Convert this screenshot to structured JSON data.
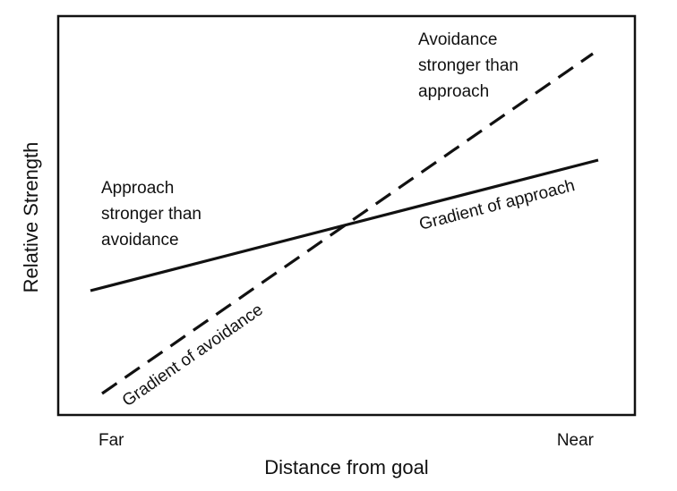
{
  "axes": {
    "xlabel": "Distance from goal",
    "ylabel": "Relative Strength",
    "x_ticks": [
      "Far",
      "Near"
    ]
  },
  "lines": {
    "approach": {
      "label": "Gradient of approach",
      "style": "solid"
    },
    "avoidance": {
      "label": "Gradient of avoidance",
      "style": "dashed"
    }
  },
  "annotations": {
    "left_region": [
      "Approach",
      "stronger than",
      "avoidance"
    ],
    "right_region": [
      "Avoidance",
      "stronger than",
      "approach"
    ]
  }
}
